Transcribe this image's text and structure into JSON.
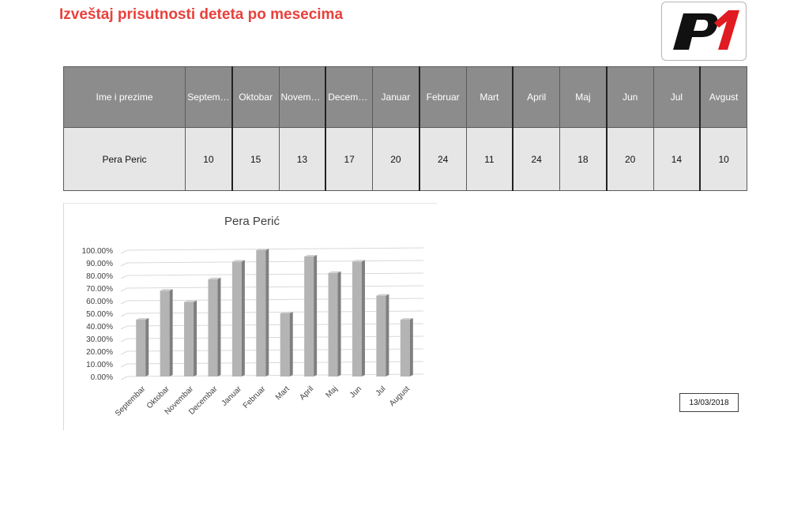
{
  "report": {
    "title": "Izveštaj prisutnosti deteta po mesecima",
    "logo_text": "P1",
    "date": "13/03/2018"
  },
  "table": {
    "name_header": "Ime i prezime",
    "months": [
      "Septem…",
      "Oktobar",
      "Novembar",
      "Decembar",
      "Januar",
      "Februar",
      "Mart",
      "April",
      "Maj",
      "Jun",
      "Jul",
      "Avgust"
    ],
    "rows": [
      {
        "name": "Pera Peric",
        "values": [
          10,
          15,
          13,
          17,
          20,
          24,
          11,
          24,
          18,
          20,
          14,
          10
        ]
      }
    ]
  },
  "colors": {
    "title": "#e8413c",
    "header_bg": "#8c8c8c",
    "cell_bg": "#e6e6e6",
    "bar_front": "#b4b4b4",
    "bar_side": "#7f7f7f",
    "bar_top": "#d0d0d0",
    "logo_red": "#e11b22"
  },
  "chart_data": {
    "type": "bar",
    "title": "Pera Perić",
    "categories": [
      "Septembar",
      "Oktobar",
      "Novembar",
      "Decembar",
      "Januar",
      "Februar",
      "Mart",
      "April",
      "Maj",
      "Jun",
      "Jul",
      "August"
    ],
    "values": [
      45,
      68,
      59,
      77,
      91,
      100,
      50,
      95,
      82,
      91,
      64,
      45
    ],
    "yticks": [
      "0.00%",
      "10.00%",
      "20.00%",
      "30.00%",
      "40.00%",
      "50.00%",
      "60.00%",
      "70.00%",
      "80.00%",
      "90.00%",
      "100.00%"
    ],
    "ylim": [
      0,
      100
    ],
    "xlabel": "",
    "ylabel": "",
    "grid": true
  }
}
